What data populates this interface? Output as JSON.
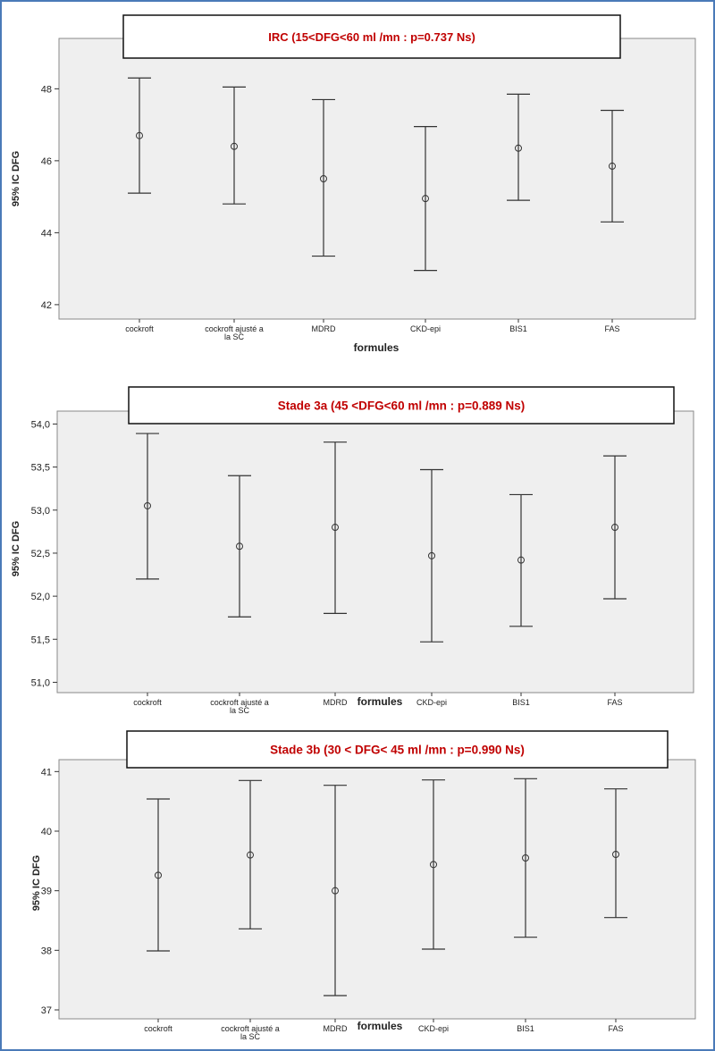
{
  "chart_data": [
    {
      "type": "errorbar",
      "title": "IRC     (15<DFG<60 ml /mn : p=0.737 Ns)",
      "xlabel": "formules",
      "ylabel": "95% IC DFG",
      "categories": [
        [
          "cockroft"
        ],
        [
          "cockroft ajusté a",
          "la SC"
        ],
        [
          "MDRD"
        ],
        [
          "CKD-epi"
        ],
        [
          "BIS1"
        ],
        [
          "FAS"
        ]
      ],
      "means": [
        46.7,
        46.4,
        45.5,
        44.95,
        46.35,
        45.85
      ],
      "lower": [
        45.1,
        44.8,
        43.35,
        42.95,
        44.9,
        44.3
      ],
      "upper": [
        48.3,
        48.05,
        47.7,
        46.95,
        47.85,
        47.4
      ],
      "yticks": [
        42,
        44,
        46,
        48
      ],
      "ytick_labels": [
        "42",
        "44",
        "46",
        "48"
      ],
      "ylim": [
        41.6,
        49.4
      ],
      "grid": false
    },
    {
      "type": "errorbar",
      "title": "Stade 3a (45 <DFG<60 ml /mn : p=0.889 Ns)",
      "xlabel": "formules",
      "ylabel": "95% IC DFG",
      "categories": [
        [
          "cockroft"
        ],
        [
          "cockroft ajusté a",
          "la SC"
        ],
        [
          "MDRD"
        ],
        [
          "CKD-epi"
        ],
        [
          "BIS1"
        ],
        [
          "FAS"
        ]
      ],
      "means": [
        53.05,
        52.58,
        52.8,
        52.47,
        52.42,
        52.8
      ],
      "lower": [
        52.2,
        51.76,
        51.8,
        51.47,
        51.65,
        51.97
      ],
      "upper": [
        53.89,
        53.4,
        53.79,
        53.47,
        53.18,
        53.63
      ],
      "yticks": [
        51.0,
        51.5,
        52.0,
        52.5,
        53.0,
        53.5,
        54.0
      ],
      "ytick_labels": [
        "51,0",
        "51,5",
        "52,0",
        "52,5",
        "53,0",
        "53,5",
        "54,0"
      ],
      "ylim": [
        50.88,
        54.15
      ],
      "grid": false
    },
    {
      "type": "errorbar",
      "title": "Stade 3b (30 < DFG< 45 ml /mn : p=0.990 Ns)",
      "xlabel": "formules",
      "ylabel": "95% IC DFG",
      "categories": [
        [
          "cockroft"
        ],
        [
          "cockroft ajusté a",
          "la SC"
        ],
        [
          "MDRD"
        ],
        [
          "CKD-epi"
        ],
        [
          "BIS1"
        ],
        [
          "FAS"
        ]
      ],
      "means": [
        39.26,
        39.6,
        39.0,
        39.44,
        39.55,
        39.61
      ],
      "lower": [
        37.99,
        38.36,
        37.24,
        38.02,
        38.22,
        38.55
      ],
      "upper": [
        40.54,
        40.85,
        40.77,
        40.86,
        40.88,
        40.71
      ],
      "yticks": [
        37,
        38,
        39,
        40,
        41
      ],
      "ytick_labels": [
        "37",
        "38",
        "39",
        "40",
        "41"
      ],
      "ylim": [
        36.85,
        41.2
      ],
      "grid": false
    }
  ]
}
